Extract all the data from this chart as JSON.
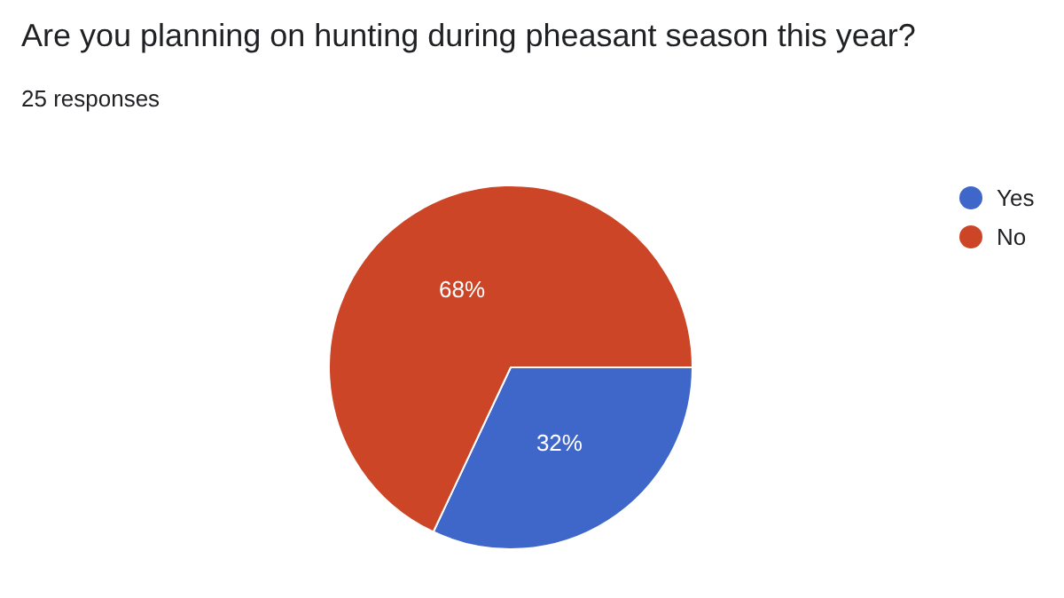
{
  "chart_data": {
    "type": "pie",
    "title": "Are you planning on hunting during pheasant season this year?",
    "subtitle": "25 responses",
    "categories": [
      "Yes",
      "No"
    ],
    "values": [
      32,
      68
    ],
    "colors": [
      "#3f67c9",
      "#cc4526"
    ],
    "value_labels": [
      "32%",
      "68%"
    ],
    "legend": "right"
  }
}
